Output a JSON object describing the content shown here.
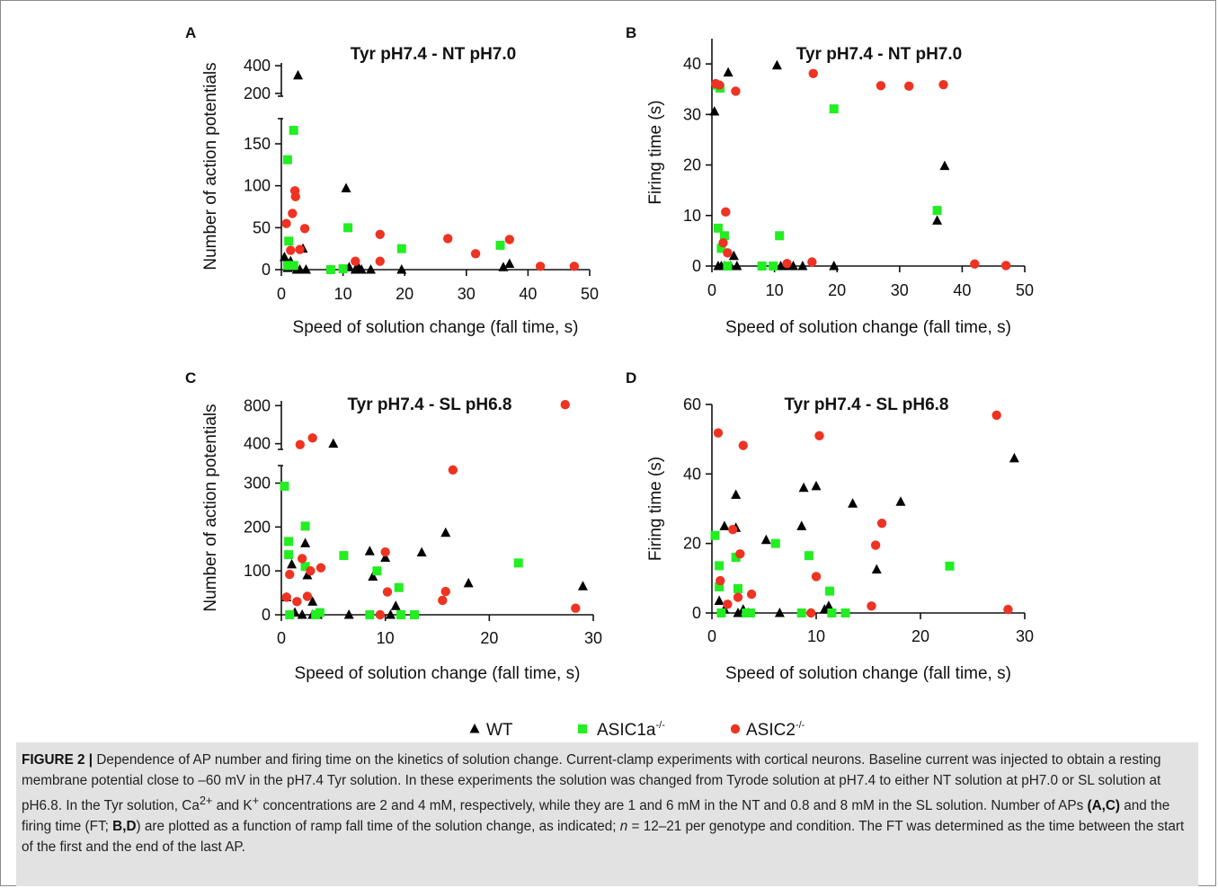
{
  "legend": {
    "items": [
      {
        "label": "WT",
        "sup": "",
        "marker": "triangle",
        "color": "#000000"
      },
      {
        "label": "ASIC1a",
        "sup": "-/-",
        "marker": "square",
        "color": "#22ee22"
      },
      {
        "label": "ASIC2",
        "sup": "-/-",
        "marker": "circle",
        "color": "#ee3322"
      }
    ],
    "placement": "bottom-center"
  },
  "caption": {
    "label": "FIGURE 2 |",
    "s1": " Dependence of AP number and firing time on the kinetics of solution change. Current-clamp experiments with cortical neurons. Baseline current was injected to obtain a resting membrane potential close to –60 mV in the pH7.4 Tyr solution. In these experiments the solution was changed from Tyrode solution at pH7.4 to either NT solution at pH7.0 or SL solution at pH6.8. In the Tyr solution, Ca",
    "sup1": "2+",
    "s2": " and K",
    "sup2": "+",
    "s3": " concentrations are 2 and 4 mM, respectively, while they are 1 and 6 mM in the NT and 0.8 and 8 mM in the SL solution. Number of APs ",
    "b1": "(A,C)",
    "s4": " and the firing time (FT; ",
    "b2": "B,D",
    "s5": ") are plotted as a function of ramp fall time of the solution change, as indicated; ",
    "it1": "n",
    "s6": " = 12–21 per genotype and condition. The FT was determined as the time between the start of the first and the end of the last AP."
  },
  "chart_data": [
    {
      "panel": "A",
      "type": "scatter",
      "title": "Tyr pH7.4 - NT pH7.0",
      "xlabel": "Speed of solution change (fall time, s)",
      "ylabel": "Number of action potentials",
      "xlim": [
        0,
        50
      ],
      "xticks": [
        0,
        10,
        20,
        30,
        40,
        50
      ],
      "ylim_lower": [
        0,
        180
      ],
      "yticks_lower": [
        0,
        50,
        100,
        150
      ],
      "ylim_upper": [
        180,
        420
      ],
      "yticks_upper": [
        200,
        400
      ],
      "broken_axis": true,
      "grid": false,
      "series": [
        {
          "name": "WT",
          "points": [
            [
              0.5,
              15
            ],
            [
              1,
              2
            ],
            [
              1.5,
              10
            ],
            [
              2,
              3
            ],
            [
              2.5,
              0
            ],
            [
              3,
              0
            ],
            [
              3.5,
              25
            ],
            [
              4,
              0
            ],
            [
              10.5,
              97
            ],
            [
              11,
              3
            ],
            [
              12,
              0
            ],
            [
              12.5,
              3
            ],
            [
              13,
              0
            ],
            [
              14.5,
              0
            ],
            [
              19.5,
              0
            ],
            [
              36,
              3
            ],
            [
              37,
              7
            ],
            [
              2.7,
              330
            ]
          ]
        },
        {
          "name": "ASIC1a",
          "points": [
            [
              1,
              131
            ],
            [
              2,
              166
            ],
            [
              1.2,
              34
            ],
            [
              1,
              5
            ],
            [
              2,
              5
            ],
            [
              8,
              0
            ],
            [
              10,
              1
            ],
            [
              10.8,
              50
            ],
            [
              19.5,
              25
            ],
            [
              35.5,
              29
            ]
          ]
        },
        {
          "name": "ASIC2",
          "points": [
            [
              0.8,
              55
            ],
            [
              1.5,
              23
            ],
            [
              1.8,
              67
            ],
            [
              2.2,
              94
            ],
            [
              2.3,
              87
            ],
            [
              3,
              24
            ],
            [
              3.8,
              49
            ],
            [
              12,
              10
            ],
            [
              16,
              42
            ],
            [
              16,
              10
            ],
            [
              27,
              37
            ],
            [
              31.5,
              19
            ],
            [
              37,
              36
            ],
            [
              42,
              4
            ],
            [
              47.5,
              4
            ]
          ]
        }
      ]
    },
    {
      "panel": "B",
      "type": "scatter",
      "title": "Tyr pH7.4 - NT pH7.0",
      "xlabel": "Speed of solution change (fall time, s)",
      "ylabel": "Firing time (s)",
      "xlim": [
        0,
        50
      ],
      "xticks": [
        0,
        10,
        20,
        30,
        40,
        50
      ],
      "ylim": [
        0,
        45
      ],
      "yticks": [
        0,
        10,
        20,
        30,
        40
      ],
      "grid": false,
      "series": [
        {
          "name": "WT",
          "points": [
            [
              0.4,
              30.6
            ],
            [
              2.6,
              38.3
            ],
            [
              10.4,
              39.7
            ],
            [
              37.2,
              19.8
            ],
            [
              36,
              9
            ],
            [
              1,
              0
            ],
            [
              1.5,
              0
            ],
            [
              2,
              0
            ],
            [
              3,
              0
            ],
            [
              3.5,
              2
            ],
            [
              4,
              0
            ],
            [
              11,
              0
            ],
            [
              12,
              0
            ],
            [
              13,
              0
            ],
            [
              14.5,
              0
            ],
            [
              19.5,
              0
            ]
          ]
        },
        {
          "name": "ASIC1a",
          "points": [
            [
              0.8,
              35.8
            ],
            [
              1.3,
              35.2
            ],
            [
              19.5,
              31.1
            ],
            [
              36,
              11
            ],
            [
              10.8,
              6
            ],
            [
              8,
              0
            ],
            [
              9.8,
              0
            ],
            [
              1,
              7.5
            ],
            [
              1.5,
              3.5
            ],
            [
              2,
              6
            ],
            [
              2.5,
              0
            ]
          ]
        },
        {
          "name": "ASIC2",
          "points": [
            [
              0.6,
              36.1
            ],
            [
              1.2,
              35.8
            ],
            [
              3.8,
              34.6
            ],
            [
              16.2,
              38.1
            ],
            [
              27,
              35.7
            ],
            [
              31.5,
              35.6
            ],
            [
              37,
              35.9
            ],
            [
              2.2,
              10.7
            ],
            [
              1.8,
              4.6
            ],
            [
              2.5,
              2.6
            ],
            [
              12,
              0.5
            ],
            [
              16,
              0.8
            ],
            [
              42,
              0.4
            ],
            [
              47,
              0.1
            ]
          ]
        }
      ]
    },
    {
      "panel": "C",
      "type": "scatter",
      "title": "Tyr pH7.4 - SL pH6.8",
      "xlabel": "Speed of solution change (fall time, s)",
      "ylabel": "Number of action potentials",
      "xlim": [
        0,
        30
      ],
      "xticks": [
        0,
        10,
        20,
        30
      ],
      "ylim_lower": [
        0,
        340
      ],
      "yticks_lower": [
        0,
        100,
        200,
        300
      ],
      "ylim_upper": [
        340,
        850
      ],
      "yticks_upper": [
        400,
        800
      ],
      "broken_axis": true,
      "grid": false,
      "series": [
        {
          "name": "WT",
          "points": [
            [
              5,
              400
            ],
            [
              0.5,
              40
            ],
            [
              1,
              115
            ],
            [
              1.3,
              5
            ],
            [
              2,
              0
            ],
            [
              2.3,
              163
            ],
            [
              2.5,
              90
            ],
            [
              3,
              0
            ],
            [
              3,
              30
            ],
            [
              3.5,
              0
            ],
            [
              6.5,
              0
            ],
            [
              8.5,
              145
            ],
            [
              8.8,
              87
            ],
            [
              10,
              130
            ],
            [
              10.5,
              0
            ],
            [
              11,
              20
            ],
            [
              13.5,
              142
            ],
            [
              15.8,
              187
            ],
            [
              18,
              72
            ],
            [
              29,
              65
            ]
          ]
        },
        {
          "name": "ASIC1a",
          "points": [
            [
              0.3,
              293
            ],
            [
              0.7,
              167
            ],
            [
              0.7,
              137
            ],
            [
              2.3,
              202
            ],
            [
              2.3,
              110
            ],
            [
              0.8,
              0
            ],
            [
              3.3,
              0
            ],
            [
              3.7,
              5
            ],
            [
              6,
              135
            ],
            [
              8.5,
              0
            ],
            [
              9.2,
              100
            ],
            [
              11.3,
              62
            ],
            [
              11.5,
              0
            ],
            [
              12.8,
              0
            ],
            [
              22.8,
              118
            ]
          ]
        },
        {
          "name": "ASIC2",
          "points": [
            [
              1.8,
              390
            ],
            [
              3,
              460
            ],
            [
              27.3,
              810
            ],
            [
              16.5,
              330
            ],
            [
              0.5,
              40
            ],
            [
              0.8,
              92
            ],
            [
              1.5,
              30
            ],
            [
              2,
              128
            ],
            [
              2.5,
              42
            ],
            [
              2.8,
              100
            ],
            [
              3.8,
              107
            ],
            [
              9.5,
              0
            ],
            [
              10,
              143
            ],
            [
              10.2,
              52
            ],
            [
              15.5,
              33
            ],
            [
              15.8,
              53
            ],
            [
              28.3,
              15
            ]
          ]
        }
      ]
    },
    {
      "panel": "D",
      "type": "scatter",
      "title": "Tyr pH7.4 - SL pH6.8",
      "xlabel": "Speed of solution change (fall time, s)",
      "ylabel": "Firing time (s)",
      "xlim": [
        0,
        30
      ],
      "xticks": [
        0,
        10,
        20,
        30
      ],
      "ylim": [
        0,
        60
      ],
      "yticks": [
        0,
        20,
        40,
        60
      ],
      "grid": false,
      "series": [
        {
          "name": "WT",
          "points": [
            [
              1.2,
              25
            ],
            [
              2.3,
              34
            ],
            [
              2.3,
              24.5
            ],
            [
              0.7,
              3.5
            ],
            [
              1.2,
              1
            ],
            [
              2.5,
              0
            ],
            [
              3,
              1
            ],
            [
              3.5,
              0
            ],
            [
              5.2,
              21
            ],
            [
              6.5,
              0
            ],
            [
              8.6,
              25
            ],
            [
              8.8,
              36
            ],
            [
              10,
              36.5
            ],
            [
              10.8,
              1
            ],
            [
              11.2,
              2
            ],
            [
              13.5,
              31.5
            ],
            [
              15.8,
              12.5
            ],
            [
              18.1,
              32
            ],
            [
              29,
              44.5
            ]
          ]
        },
        {
          "name": "ASIC1a",
          "points": [
            [
              0.3,
              22.3
            ],
            [
              0.7,
              13.6
            ],
            [
              0.7,
              7.5
            ],
            [
              0.9,
              0
            ],
            [
              2.3,
              16
            ],
            [
              2.5,
              7
            ],
            [
              3.3,
              0
            ],
            [
              3.7,
              0
            ],
            [
              6.1,
              20
            ],
            [
              8.6,
              0
            ],
            [
              9.3,
              16.5
            ],
            [
              11.3,
              6.3
            ],
            [
              11.5,
              0
            ],
            [
              12.8,
              0
            ],
            [
              22.8,
              13.5
            ]
          ]
        },
        {
          "name": "ASIC2",
          "points": [
            [
              0.6,
              51.8
            ],
            [
              3,
              48.2
            ],
            [
              10.3,
              51
            ],
            [
              27.3,
              56.9
            ],
            [
              0.8,
              9.3
            ],
            [
              1.5,
              2.5
            ],
            [
              2,
              24
            ],
            [
              2.5,
              4.5
            ],
            [
              2.7,
              17
            ],
            [
              3.8,
              5.4
            ],
            [
              9.5,
              0
            ],
            [
              10,
              10.5
            ],
            [
              15.3,
              2
            ],
            [
              15.7,
              19.5
            ],
            [
              16.3,
              25.8
            ],
            [
              28.4,
              1
            ]
          ]
        }
      ]
    }
  ]
}
